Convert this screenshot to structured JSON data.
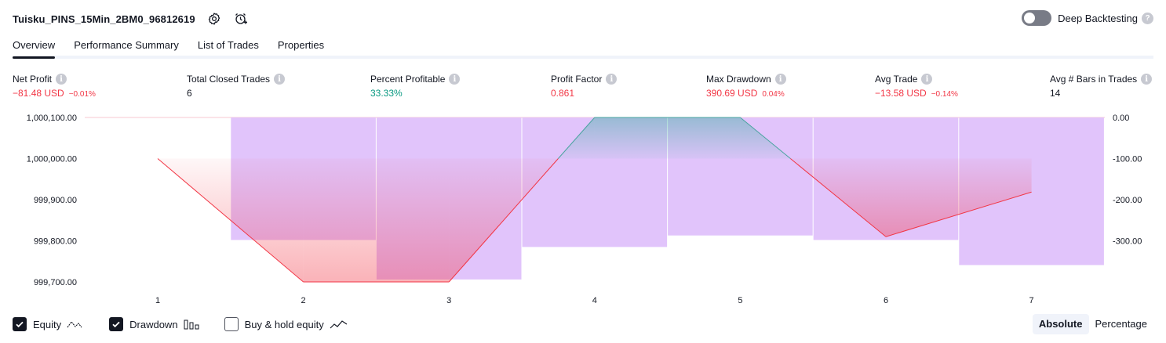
{
  "header": {
    "strategy_name": "Tuisku_PINS_15Min_2BM0_96812619",
    "deep_backtesting_label": "Deep Backtesting"
  },
  "tabs": [
    {
      "label": "Overview",
      "active": true
    },
    {
      "label": "Performance Summary"
    },
    {
      "label": "List of Trades"
    },
    {
      "label": "Properties"
    }
  ],
  "metrics": {
    "net_profit": {
      "label": "Net Profit",
      "value": "−81.48 USD",
      "pct": "−0.01%"
    },
    "total_closed_trades": {
      "label": "Total Closed Trades",
      "value": "6"
    },
    "percent_profitable": {
      "label": "Percent Profitable",
      "value": "33.33%"
    },
    "profit_factor": {
      "label": "Profit Factor",
      "value": "0.861"
    },
    "max_drawdown": {
      "label": "Max Drawdown",
      "value": "390.69 USD",
      "pct": "0.04%"
    },
    "avg_trade": {
      "label": "Avg Trade",
      "value": "−13.58 USD",
      "pct": "−0.14%"
    },
    "avg_bars": {
      "label": "Avg # Bars in Trades",
      "value": "14"
    }
  },
  "chart_data": {
    "type": "line",
    "x": [
      1,
      2,
      3,
      4,
      5,
      6,
      7
    ],
    "left_axis": {
      "ticks": [
        "1,000,100.00",
        "1,000,000.00",
        "999,900.00",
        "999,800.00",
        "999,700.00"
      ],
      "range": [
        999700,
        1000100
      ]
    },
    "right_axis": {
      "ticks": [
        "0.00",
        "-100.00",
        "-200.00",
        "-300.00"
      ],
      "range": [
        -400,
        0
      ]
    },
    "series": [
      {
        "name": "Equity",
        "values": [
          1000000,
          999700,
          999700,
          1000100,
          1000100,
          999810,
          999918.52
        ]
      },
      {
        "name": "Drawdown",
        "values": [
          0,
          -298,
          -394,
          -315,
          -287,
          -298,
          -359
        ]
      }
    ],
    "initial_capital": 1000000,
    "colors": {
      "equity_up": "#4aa4a0",
      "equity_down": "#f23645",
      "drawdown": "#e1c4fb"
    }
  },
  "footer": {
    "legend": [
      {
        "label": "Equity",
        "checked": true
      },
      {
        "label": "Drawdown",
        "checked": true
      },
      {
        "label": "Buy & hold equity",
        "checked": false
      }
    ],
    "modes": [
      {
        "label": "Absolute",
        "active": true
      },
      {
        "label": "Percentage",
        "active": false
      }
    ]
  }
}
